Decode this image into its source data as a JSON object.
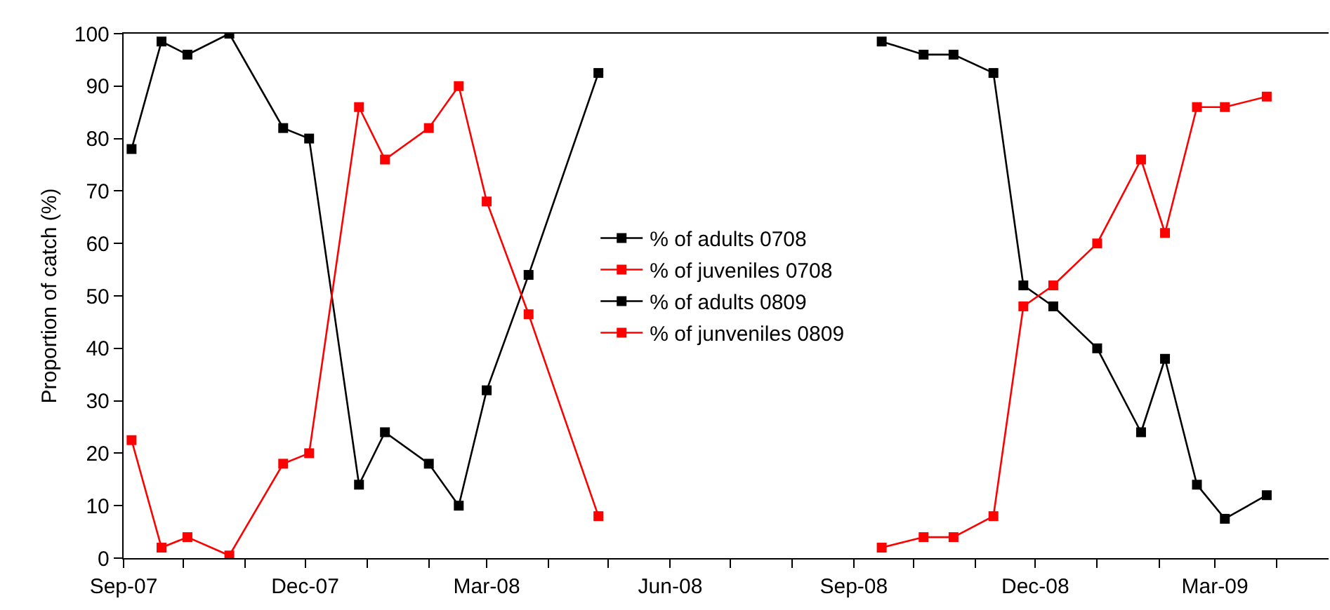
{
  "chart_data": {
    "type": "line",
    "ylabel": "Proportion of catch (%)",
    "ylim": [
      0,
      100
    ],
    "yticks": [
      0,
      10,
      20,
      30,
      40,
      50,
      60,
      70,
      80,
      90,
      100
    ],
    "xlim": [
      "2007-09-01",
      "2009-04-27"
    ],
    "xticks": [
      {
        "value": "2007-09-01",
        "label": "Sep-07"
      },
      {
        "value": "2007-10-01",
        "label": null
      },
      {
        "value": "2007-11-01",
        "label": null
      },
      {
        "value": "2007-12-01",
        "label": "Dec-07"
      },
      {
        "value": "2008-01-01",
        "label": null
      },
      {
        "value": "2008-02-01",
        "label": null
      },
      {
        "value": "2008-03-01",
        "label": "Mar-08"
      },
      {
        "value": "2008-04-01",
        "label": null
      },
      {
        "value": "2008-05-01",
        "label": null
      },
      {
        "value": "2008-06-01",
        "label": "Jun-08"
      },
      {
        "value": "2008-07-01",
        "label": null
      },
      {
        "value": "2008-08-01",
        "label": null
      },
      {
        "value": "2008-09-01",
        "label": "Sep-08"
      },
      {
        "value": "2008-10-01",
        "label": null
      },
      {
        "value": "2008-11-01",
        "label": null
      },
      {
        "value": "2008-12-01",
        "label": "Dec-08"
      },
      {
        "value": "2009-01-01",
        "label": null
      },
      {
        "value": "2009-02-01",
        "label": null
      },
      {
        "value": "2009-03-01",
        "label": "Mar-09"
      },
      {
        "value": "2009-04-01",
        "label": null
      }
    ],
    "legend": "center",
    "marker": "square",
    "line_style": "solid",
    "series": [
      {
        "name": "% of adults 0708",
        "color": "#000000",
        "x": [
          "2007-09-05",
          "2007-09-20",
          "2007-10-03",
          "2007-10-24",
          "2007-11-20",
          "2007-12-03",
          "2007-12-28",
          "2008-01-10",
          "2008-02-01",
          "2008-02-16",
          "2008-03-01",
          "2008-03-22",
          "2008-04-26"
        ],
        "values": [
          78,
          98.5,
          96,
          100,
          82,
          80,
          14,
          24,
          18,
          10,
          32,
          54,
          92.5
        ]
      },
      {
        "name": "% of juveniles 0708",
        "color": "#ff0000",
        "x": [
          "2007-09-05",
          "2007-09-20",
          "2007-10-03",
          "2007-10-24",
          "2007-11-20",
          "2007-12-03",
          "2007-12-28",
          "2008-01-10",
          "2008-02-01",
          "2008-02-16",
          "2008-03-01",
          "2008-03-22",
          "2008-04-26"
        ],
        "values": [
          22.5,
          2,
          4,
          0.5,
          18,
          20,
          86,
          76,
          82,
          90,
          68,
          46.5,
          8
        ]
      },
      {
        "name": "% of adults 0809",
        "color": "#000000",
        "x": [
          "2008-09-15",
          "2008-10-06",
          "2008-10-21",
          "2008-11-10",
          "2008-11-25",
          "2008-12-10",
          "2009-01-01",
          "2009-01-23",
          "2009-02-04",
          "2009-02-20",
          "2009-03-06",
          "2009-03-27"
        ],
        "values": [
          98.5,
          96,
          96,
          92.5,
          52,
          48,
          40,
          24,
          38,
          14,
          7.5,
          12
        ]
      },
      {
        "name": "% of junveniles 0809",
        "color": "#ff0000",
        "x": [
          "2008-09-15",
          "2008-10-06",
          "2008-10-21",
          "2008-11-10",
          "2008-11-25",
          "2008-12-10",
          "2009-01-01",
          "2009-01-23",
          "2009-02-04",
          "2009-02-20",
          "2009-03-06",
          "2009-03-27"
        ],
        "values": [
          2,
          4,
          4,
          8,
          48,
          52,
          60,
          76,
          62,
          86,
          86,
          88
        ]
      }
    ]
  }
}
